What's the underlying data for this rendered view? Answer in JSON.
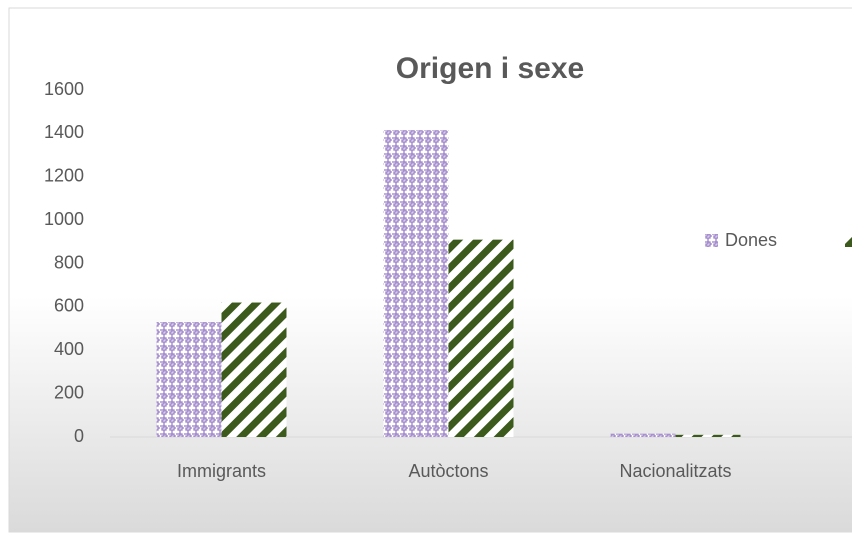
{
  "chart_data": {
    "type": "bar",
    "title": "Origen i sexe",
    "categories": [
      "Immigrants",
      "Autòctons",
      "Nacionalitzats"
    ],
    "series": [
      {
        "name": "Dones",
        "color": "#9a7fc8",
        "values": [
          530,
          1415,
          15
        ]
      },
      {
        "color": "#3b5a1c",
        "values": [
          620,
          910,
          10
        ]
      }
    ],
    "ylim": [
      0,
      1600
    ],
    "yticks": [
      0,
      200,
      400,
      600,
      800,
      1000,
      1200,
      1400,
      1600
    ],
    "grid": false,
    "legend": "right"
  }
}
